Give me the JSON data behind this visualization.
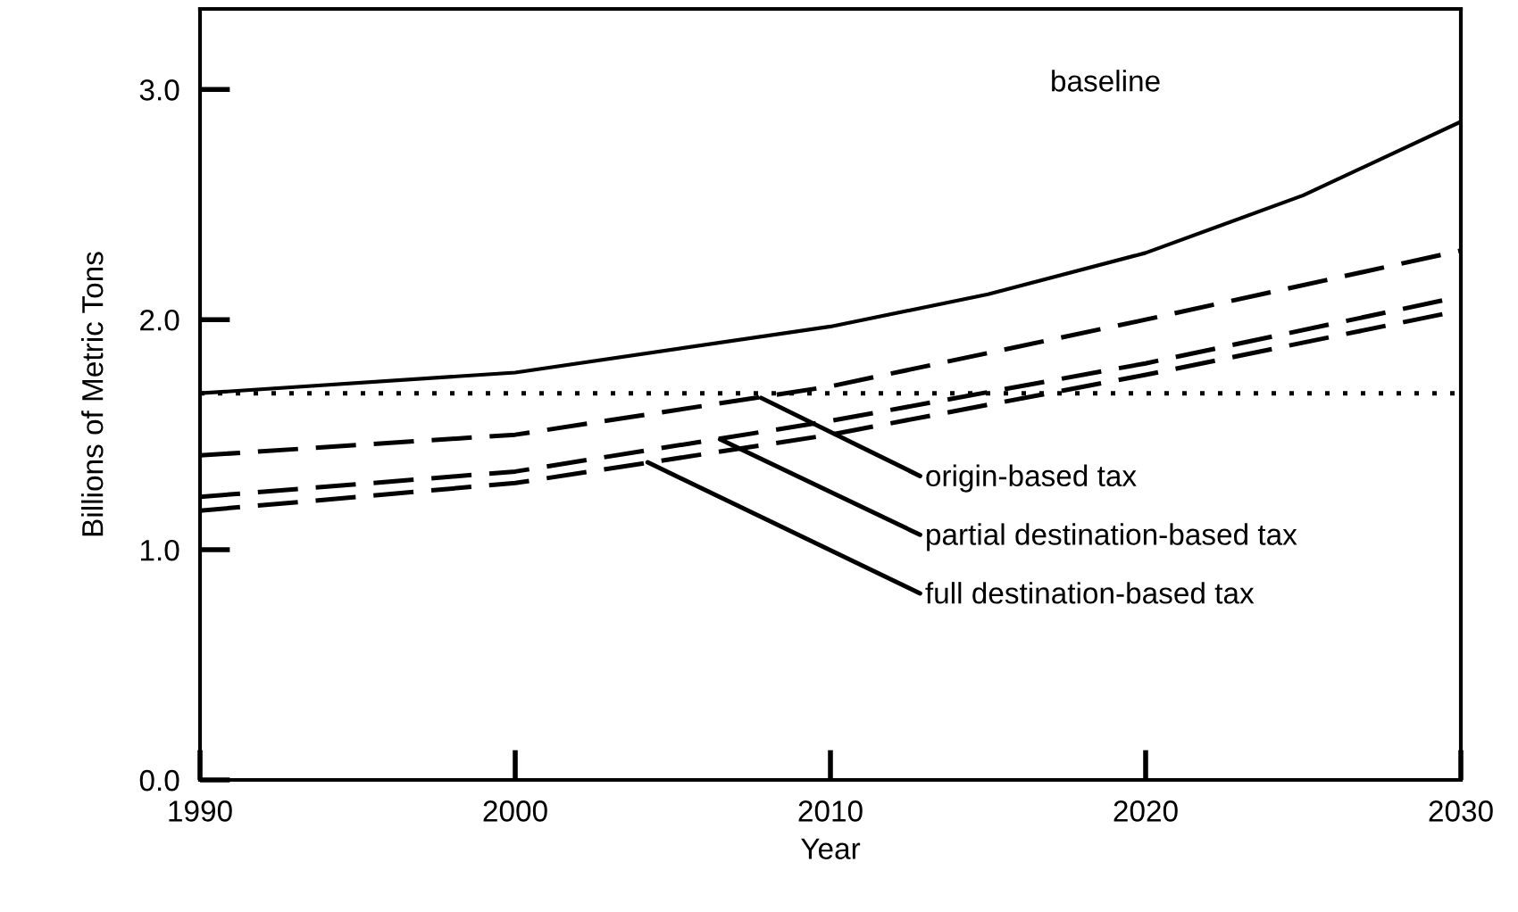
{
  "chart_data": {
    "type": "line",
    "xlabel": "Year",
    "ylabel": "Billions of Metric Tons",
    "xlim": [
      1990,
      2030
    ],
    "xticks": [
      1990,
      2000,
      2010,
      2020,
      2030
    ],
    "ylim": [
      0,
      3.35
    ],
    "yticks": [
      {
        "value": 0,
        "label": "0.0"
      },
      {
        "value": 1,
        "label": "1.0"
      },
      {
        "value": 2,
        "label": "2.0"
      },
      {
        "value": 3,
        "label": "3.0"
      }
    ],
    "grid": false,
    "legend": false,
    "marker": "none",
    "series": [
      {
        "name": "baseline",
        "color": "#000000",
        "line_style": "solid",
        "x": [
          1990,
          2000,
          2010,
          2015,
          2020,
          2025,
          2030
        ],
        "values": [
          1.68,
          1.77,
          1.97,
          2.11,
          2.29,
          2.54,
          2.86
        ]
      },
      {
        "color": "#000000",
        "line_style": "dotted",
        "x": [
          1990,
          2030
        ],
        "values": [
          1.68,
          1.68
        ]
      },
      {
        "color": "#000000",
        "line_style": "dashed",
        "x": [
          1990,
          2000,
          2010,
          2020,
          2030
        ],
        "values": [
          1.41,
          1.5,
          1.71,
          2.0,
          2.3
        ]
      },
      {
        "color": "#000000",
        "line_style": "dashed",
        "x": [
          1990,
          2000,
          2010,
          2020,
          2030
        ],
        "values": [
          1.23,
          1.34,
          1.56,
          1.81,
          2.1
        ]
      },
      {
        "color": "#000000",
        "line_style": "dashed",
        "x": [
          1990,
          2000,
          2010,
          2020,
          2030
        ],
        "values": [
          1.17,
          1.29,
          1.5,
          1.76,
          2.04
        ]
      }
    ],
    "annotations": [
      {
        "text": "origin-based tax",
        "x": 2007.8,
        "y": 1.66
      },
      {
        "text": "partial destination-based tax",
        "x": 2006.5,
        "y": 1.48
      },
      {
        "text": "full destination-based tax",
        "x": 2004.2,
        "y": 1.38
      }
    ]
  }
}
